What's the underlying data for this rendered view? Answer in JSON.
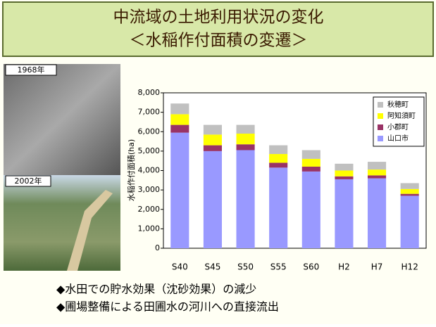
{
  "slide": {
    "title_lines": [
      "中流域の土地利用状況の変化",
      "＜水稲作付面積の変遷＞"
    ],
    "photo_labels": [
      "1968年",
      "2002年"
    ],
    "bullets": [
      "◆水田での貯水効果（沈砂効果）の減少",
      "◆圃場整備による田圃水の河川への直接流出"
    ]
  },
  "chart_data": {
    "type": "stacked-bar",
    "y_label": "水稲作付面積(ha)",
    "categories": [
      "S40",
      "S45",
      "S50",
      "S55",
      "S60",
      "H2",
      "H7",
      "H12"
    ],
    "series": [
      {
        "name": "山口市",
        "color": "#9999ff",
        "values": [
          5950,
          5000,
          5050,
          4150,
          3950,
          3550,
          3600,
          2700
        ]
      },
      {
        "name": "小郡町",
        "color": "#993366",
        "values": [
          400,
          300,
          300,
          250,
          250,
          150,
          150,
          100
        ]
      },
      {
        "name": "阿知須町",
        "color": "#ffff00",
        "values": [
          550,
          550,
          550,
          450,
          400,
          300,
          300,
          250
        ]
      },
      {
        "name": "秋穂町",
        "color": "#c0c0c0",
        "values": [
          550,
          500,
          450,
          450,
          450,
          350,
          400,
          300
        ]
      }
    ],
    "ylim": [
      0,
      8000
    ],
    "yticks": [
      0,
      {
        "value": 1000,
        "label": "1,000"
      },
      {
        "value": 2000,
        "label": "2,000"
      },
      {
        "value": 3000,
        "label": "3,000"
      },
      {
        "value": 4000,
        "label": "4,000"
      },
      {
        "value": 5000,
        "label": "5,000"
      },
      {
        "value": 6000,
        "label": "6,000"
      },
      {
        "value": 7000,
        "label": "7,000"
      },
      {
        "value": 8000,
        "label": "8,000"
      }
    ],
    "legend_position": "upper right"
  }
}
